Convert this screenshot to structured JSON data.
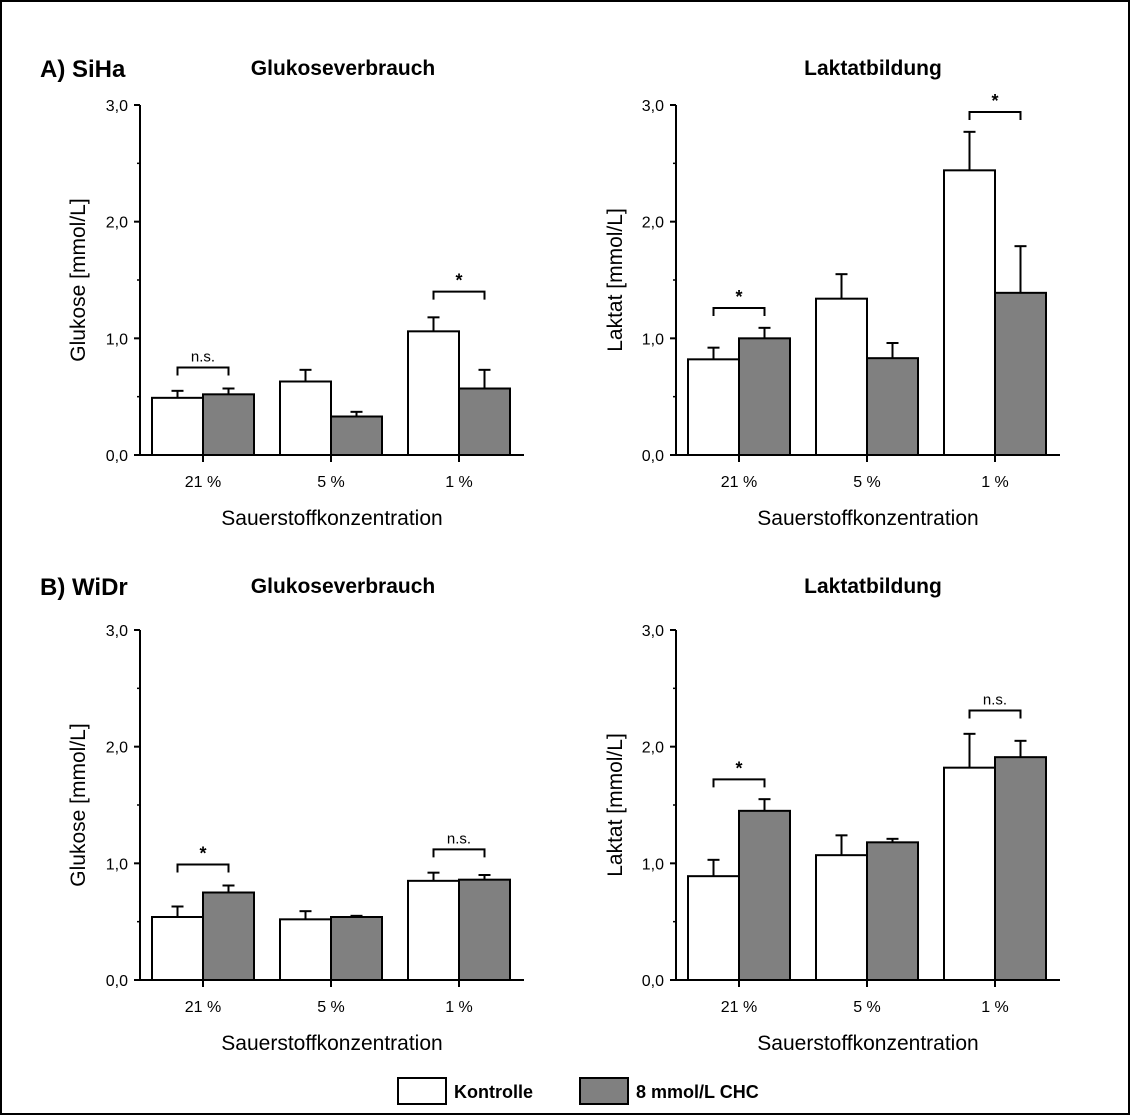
{
  "panels": [
    {
      "label": "A) SiHa"
    },
    {
      "label": "B) WiDr"
    }
  ],
  "legend": [
    {
      "name": "Kontrolle",
      "color": "#ffffff"
    },
    {
      "name": "8 mmol/L CHC",
      "color": "#808080"
    }
  ],
  "chart_data": [
    {
      "type": "bar",
      "title": "Glukoseverbrauch",
      "xlabel": "Sauerstoffkonzentration",
      "ylabel": "Glukose [mmol/L]",
      "ylim": [
        0,
        3
      ],
      "yticks": [
        "0,0",
        "1,0",
        "2,0",
        "3,0"
      ],
      "categories": [
        "21 %",
        "5 %",
        "1 %"
      ],
      "series": [
        {
          "name": "Kontrolle",
          "values": [
            0.49,
            0.63,
            1.06
          ],
          "errors": [
            0.06,
            0.1,
            0.12
          ]
        },
        {
          "name": "8 mmol/L CHC",
          "values": [
            0.52,
            0.33,
            0.57
          ],
          "errors": [
            0.05,
            0.04,
            0.16
          ]
        }
      ],
      "significance": [
        {
          "category": 0,
          "label": "n.s.",
          "y": 0.75
        },
        {
          "category": 2,
          "label": "*",
          "y": 1.4
        }
      ]
    },
    {
      "type": "bar",
      "title": "Laktatbildung",
      "xlabel": "Sauerstoffkonzentration",
      "ylabel": "Laktat [mmol/L]",
      "ylim": [
        0,
        3
      ],
      "yticks": [
        "0,0",
        "1,0",
        "2,0",
        "3,0"
      ],
      "categories": [
        "21 %",
        "5 %",
        "1 %"
      ],
      "series": [
        {
          "name": "Kontrolle",
          "values": [
            0.82,
            1.34,
            2.44
          ],
          "errors": [
            0.1,
            0.21,
            0.33
          ]
        },
        {
          "name": "8 mmol/L CHC",
          "values": [
            1.0,
            0.83,
            1.39
          ],
          "errors": [
            0.09,
            0.13,
            0.4
          ]
        }
      ],
      "significance": [
        {
          "category": 0,
          "label": "*",
          "y": 1.26
        },
        {
          "category": 2,
          "label": "*",
          "y": 2.94
        }
      ]
    },
    {
      "type": "bar",
      "title": "Glukoseverbrauch",
      "xlabel": "Sauerstoffkonzentration",
      "ylabel": "Glukose [mmol/L]",
      "ylim": [
        0,
        3
      ],
      "yticks": [
        "0,0",
        "1,0",
        "2,0",
        "3,0"
      ],
      "categories": [
        "21 %",
        "5 %",
        "1 %"
      ],
      "series": [
        {
          "name": "Kontrolle",
          "values": [
            0.54,
            0.52,
            0.85
          ],
          "errors": [
            0.09,
            0.07,
            0.07
          ]
        },
        {
          "name": "8 mmol/L CHC",
          "values": [
            0.75,
            0.54,
            0.86
          ],
          "errors": [
            0.06,
            0.01,
            0.04
          ]
        }
      ],
      "significance": [
        {
          "category": 0,
          "label": "*",
          "y": 0.99
        },
        {
          "category": 2,
          "label": "n.s.",
          "y": 1.12
        }
      ]
    },
    {
      "type": "bar",
      "title": "Laktatbildung",
      "xlabel": "Sauerstoffkonzentration",
      "ylabel": "Laktat [mmol/L]",
      "ylim": [
        0,
        3
      ],
      "yticks": [
        "0,0",
        "1,0",
        "2,0",
        "3,0"
      ],
      "categories": [
        "21 %",
        "5 %",
        "1 %"
      ],
      "series": [
        {
          "name": "Kontrolle",
          "values": [
            0.89,
            1.07,
            1.82
          ],
          "errors": [
            0.14,
            0.17,
            0.29
          ]
        },
        {
          "name": "8 mmol/L CHC",
          "values": [
            1.45,
            1.18,
            1.91
          ],
          "errors": [
            0.1,
            0.03,
            0.14
          ]
        }
      ],
      "significance": [
        {
          "category": 0,
          "label": "*",
          "y": 1.72
        },
        {
          "category": 2,
          "label": "n.s.",
          "y": 2.31
        }
      ]
    }
  ]
}
